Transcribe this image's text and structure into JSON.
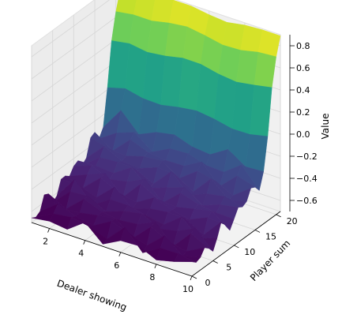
{
  "chart_data": {
    "type": "surface3d",
    "colormap": "viridis",
    "xlabel": "Dealer showing",
    "ylabel": "Player sum",
    "zlabel": "Value",
    "xlim": [
      1,
      10
    ],
    "ylim": [
      0,
      21
    ],
    "zlim": [
      -0.7,
      0.9
    ],
    "xticks": [
      "2",
      "4",
      "6",
      "8",
      "10"
    ],
    "yticks": [
      "0",
      "5",
      "10",
      "15",
      "20"
    ],
    "zticks": [
      "−0.6",
      "−0.4",
      "−0.2",
      "0.0",
      "0.2",
      "0.4",
      "0.6",
      "0.8"
    ],
    "dealer_showing": [
      1,
      2,
      3,
      4,
      5,
      6,
      7,
      8,
      9,
      10
    ],
    "player_sum": [
      0,
      1,
      2,
      3,
      4,
      5,
      6,
      7,
      8,
      9,
      10,
      11,
      12,
      13,
      14,
      15,
      16,
      17,
      18,
      19,
      20,
      21
    ],
    "value_by_player_sum": [
      -0.62,
      -0.6,
      -0.58,
      -0.57,
      -0.55,
      -0.53,
      -0.52,
      -0.5,
      -0.48,
      -0.46,
      -0.44,
      -0.42,
      -0.4,
      -0.38,
      -0.35,
      -0.32,
      -0.28,
      -0.2,
      0.05,
      0.45,
      0.7,
      0.88
    ],
    "grid": true
  }
}
